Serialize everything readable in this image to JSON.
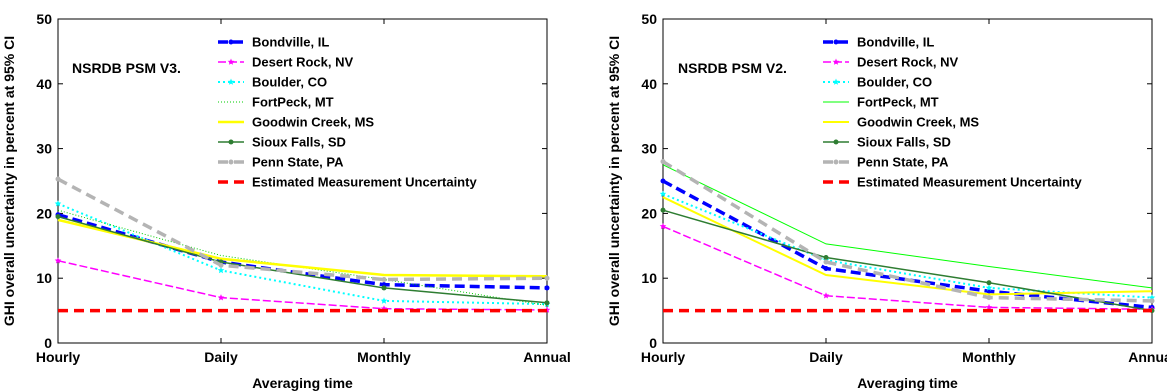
{
  "chart_data": [
    {
      "type": "line",
      "annotation": "NSRDB PSM V3.",
      "xlabel": "Averaging time",
      "ylabel": "GHI overall uncertainty in percent at 95% CI",
      "categories": [
        "Hourly",
        "Daily",
        "Monthly",
        "Annual"
      ],
      "ylim": [
        0,
        50
      ],
      "yticks": [
        0,
        10,
        20,
        30,
        40,
        50
      ],
      "legend_position": "top-right",
      "series": [
        {
          "name": "Bondville, IL",
          "values": [
            19.8,
            12.5,
            9.0,
            8.5
          ],
          "color": "#0000ff",
          "dash": "10,5",
          "width": 3.5,
          "marker": "dot"
        },
        {
          "name": "Desert Rock, NV",
          "values": [
            12.7,
            7.0,
            5.3,
            5.1
          ],
          "color": "#ff00ff",
          "dash": "8,3",
          "width": 1.5,
          "marker": "star"
        },
        {
          "name": "Boulder, CO",
          "values": [
            21.5,
            11.2,
            6.5,
            6.0
          ],
          "color": "#00ffff",
          "dash": "2,3",
          "width": 2,
          "marker": "star"
        },
        {
          "name": "FortPeck, MT",
          "values": [
            20.5,
            13.5,
            9.8,
            5.8
          ],
          "color": "#00cc00",
          "dash": "1,2",
          "width": 1,
          "marker": "none"
        },
        {
          "name": "Goodwin Creek, MS",
          "values": [
            19.0,
            13.0,
            10.5,
            10.3
          ],
          "color": "#ffff00",
          "dash": "",
          "width": 2.5,
          "marker": "none"
        },
        {
          "name": "Sioux Falls, SD",
          "values": [
            19.5,
            12.5,
            8.5,
            6.2
          ],
          "color": "#2e7d32",
          "dash": "",
          "width": 1.5,
          "marker": "dot"
        },
        {
          "name": "Penn State, PA",
          "values": [
            25.3,
            12.0,
            9.8,
            10.0
          ],
          "color": "#b4b4b4",
          "dash": "10,6",
          "width": 3.5,
          "marker": "dot"
        },
        {
          "name": "Estimated Measurement Uncertainty",
          "values": [
            5,
            5,
            5,
            5
          ],
          "color": "#ff0000",
          "dash": "10,6",
          "width": 3.5,
          "marker": "none"
        }
      ]
    },
    {
      "type": "line",
      "annotation": "NSRDB PSM V2.",
      "xlabel": "Averaging time",
      "ylabel": "GHI overall uncertainty in percent at 95% CI",
      "categories": [
        "Hourly",
        "Daily",
        "Monthly",
        "Annual"
      ],
      "ylim": [
        0,
        50
      ],
      "yticks": [
        0,
        10,
        20,
        30,
        40,
        50
      ],
      "legend_position": "top-right",
      "series": [
        {
          "name": "Bondville, IL",
          "values": [
            25.0,
            11.5,
            8.0,
            5.5
          ],
          "color": "#0000ff",
          "dash": "10,5",
          "width": 3.5,
          "marker": "dot"
        },
        {
          "name": "Desert Rock, NV",
          "values": [
            18.0,
            7.3,
            5.5,
            5.2
          ],
          "color": "#ff00ff",
          "dash": "8,3",
          "width": 1.5,
          "marker": "star"
        },
        {
          "name": "Boulder, CO",
          "values": [
            23.0,
            12.8,
            8.5,
            7.0
          ],
          "color": "#00ffff",
          "dash": "2,3",
          "width": 2,
          "marker": "star"
        },
        {
          "name": "FortPeck, MT",
          "values": [
            27.5,
            15.3,
            11.8,
            8.5
          ],
          "color": "#00ff00",
          "dash": "",
          "width": 1,
          "marker": "none"
        },
        {
          "name": "Goodwin Creek, MS",
          "values": [
            22.5,
            10.5,
            7.5,
            8.0
          ],
          "color": "#ffff00",
          "dash": "",
          "width": 2,
          "marker": "none"
        },
        {
          "name": "Sioux Falls, SD",
          "values": [
            20.5,
            13.2,
            9.3,
            5.0
          ],
          "color": "#2e7d32",
          "dash": "",
          "width": 1.5,
          "marker": "dot"
        },
        {
          "name": "Penn State, PA",
          "values": [
            28.0,
            12.5,
            7.0,
            6.5
          ],
          "color": "#b4b4b4",
          "dash": "10,6",
          "width": 3.5,
          "marker": "dot"
        },
        {
          "name": "Estimated Measurement Uncertainty",
          "values": [
            5,
            5,
            5,
            5
          ],
          "color": "#ff0000",
          "dash": "10,6",
          "width": 3.5,
          "marker": "none"
        }
      ]
    }
  ]
}
